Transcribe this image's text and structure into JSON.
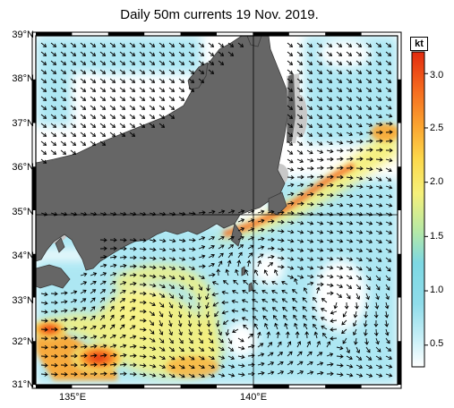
{
  "title": "Daily 50m currents 19 Nov. 2019.",
  "colorbar": {
    "unit": "kt",
    "ticks": [
      {
        "label": "3.0",
        "value": 3.0
      },
      {
        "label": "2.5",
        "value": 2.5
      },
      {
        "label": "2.0",
        "value": 2.0
      },
      {
        "label": "1.5",
        "value": 1.5
      },
      {
        "label": "1.0",
        "value": 1.0
      },
      {
        "label": "0.5",
        "value": 0.5
      }
    ],
    "range": [
      0.3,
      3.2
    ],
    "colors": [
      "#ffffff",
      "#9ce5f2",
      "#7dd8e3",
      "#b5e8a6",
      "#f5f07a",
      "#fcd84b",
      "#fba631",
      "#f56a1e",
      "#e22b0f"
    ]
  },
  "axes": {
    "lat_labels": [
      {
        "label": "39°N",
        "value": 39
      },
      {
        "label": "38°N",
        "value": 38
      },
      {
        "label": "37°N",
        "value": 37
      },
      {
        "label": "36°N",
        "value": 36
      },
      {
        "label": "35°N",
        "value": 35
      },
      {
        "label": "34°N",
        "value": 34
      },
      {
        "label": "33°N",
        "value": 33
      },
      {
        "label": "32°N",
        "value": 32
      },
      {
        "label": "31°N",
        "value": 31
      }
    ],
    "lon_labels": [
      {
        "label": "135°E",
        "value": 135
      },
      {
        "label": "140°E",
        "value": 140
      }
    ],
    "lon_range": [
      134,
      144
    ],
    "lat_range": [
      31,
      39
    ]
  },
  "colors": {
    "land": "#666666",
    "land_edge": "#3a3a3a",
    "shelf": "#c8c8c8",
    "grid": "#000000"
  }
}
